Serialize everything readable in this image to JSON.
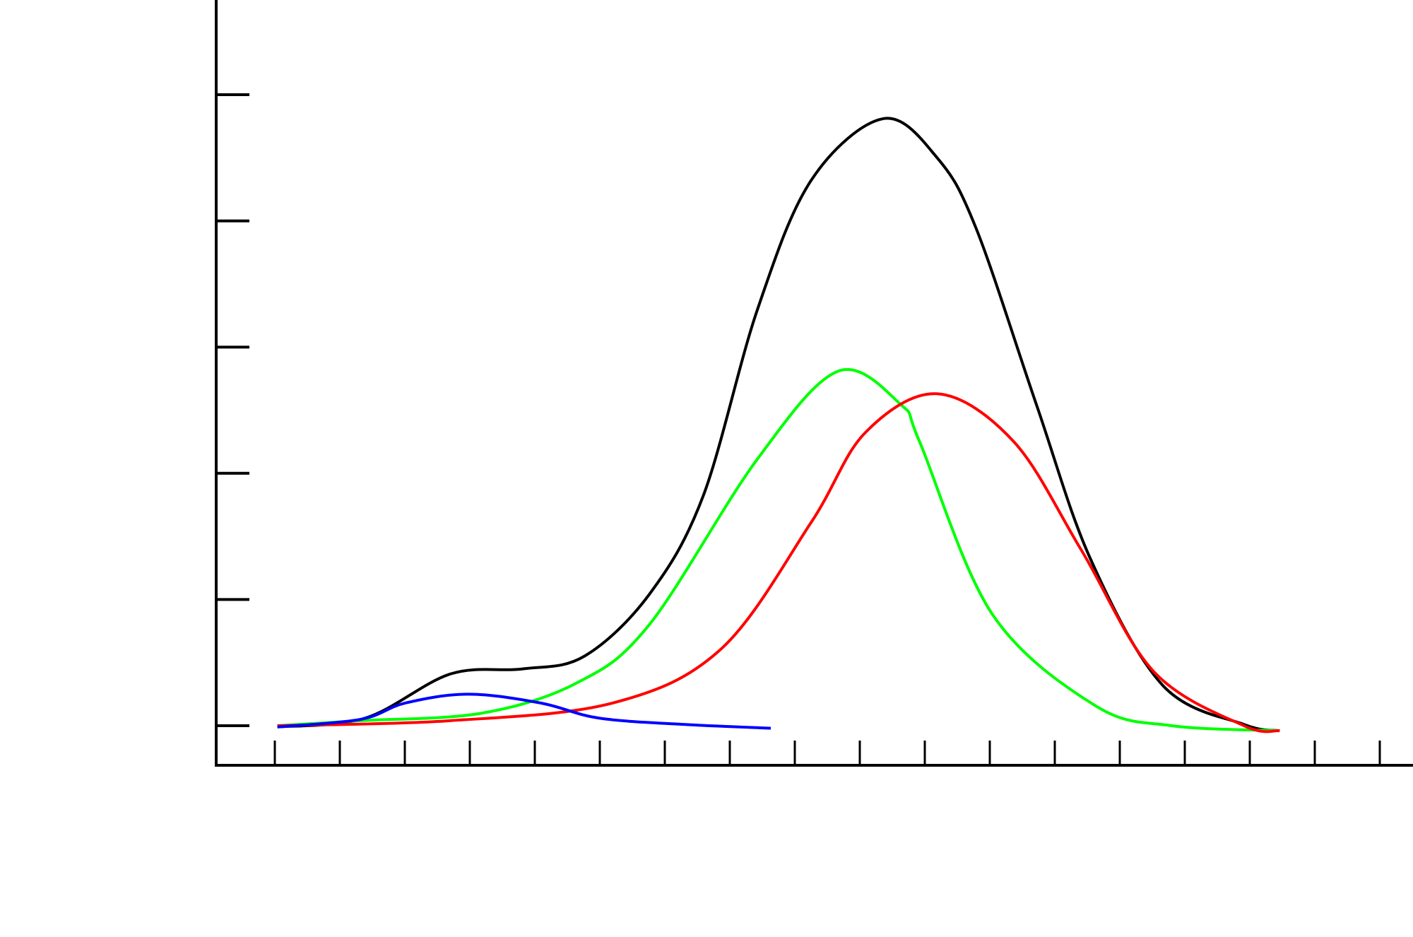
{
  "chart_data": {
    "type": "line",
    "title": "",
    "xlabel": "",
    "ylabel": "",
    "xlim": [
      -0.9,
      17.9
    ],
    "ylim": [
      -0.31,
      5.75
    ],
    "x_ticks": [
      0,
      1,
      2,
      3,
      4,
      5,
      6,
      7,
      8,
      9,
      10,
      11,
      12,
      13,
      14,
      15,
      16,
      17
    ],
    "y_ticks": [
      0,
      1,
      2,
      3,
      4,
      5
    ],
    "grid": false,
    "legend": "none",
    "series": [
      {
        "name": "black",
        "color": "#000000",
        "points": [
          [
            0.04,
            -0.01
          ],
          [
            1.39,
            0.06
          ],
          [
            2.7,
            0.41
          ],
          [
            3.81,
            0.45
          ],
          [
            4.76,
            0.55
          ],
          [
            5.76,
            1.04
          ],
          [
            6.59,
            1.82
          ],
          [
            7.42,
            3.29
          ],
          [
            8.25,
            4.32
          ],
          [
            9.36,
            4.81
          ],
          [
            10.19,
            4.5
          ],
          [
            10.79,
            3.94
          ],
          [
            11.72,
            2.54
          ],
          [
            12.55,
            1.32
          ],
          [
            13.66,
            0.32
          ],
          [
            14.91,
            0.01
          ],
          [
            15.46,
            -0.04
          ]
        ]
      },
      {
        "name": "green",
        "color": "#00ff00",
        "points": [
          [
            0.04,
            0
          ],
          [
            1.32,
            0.04
          ],
          [
            3.19,
            0.1
          ],
          [
            4.65,
            0.34
          ],
          [
            5.76,
            0.8
          ],
          [
            7.42,
            2.11
          ],
          [
            8.67,
            2.81
          ],
          [
            9.64,
            2.54
          ],
          [
            9.92,
            2.25
          ],
          [
            11.03,
            0.89
          ],
          [
            12.62,
            0.16
          ],
          [
            13.8,
            0
          ],
          [
            15.46,
            -0.04
          ]
        ]
      },
      {
        "name": "red",
        "color": "#ff0000",
        "points": [
          [
            0.04,
            0
          ],
          [
            2.7,
            0.04
          ],
          [
            5.2,
            0.18
          ],
          [
            6.87,
            0.61
          ],
          [
            8.25,
            1.61
          ],
          [
            9.08,
            2.32
          ],
          [
            10.19,
            2.63
          ],
          [
            11.37,
            2.25
          ],
          [
            12.41,
            1.39
          ],
          [
            13.52,
            0.43
          ],
          [
            14.91,
            0
          ],
          [
            15.46,
            -0.04
          ]
        ]
      },
      {
        "name": "blue",
        "color": "#0000ff",
        "points": [
          [
            0.04,
            -0.01
          ],
          [
            1.32,
            0.05
          ],
          [
            2.01,
            0.18
          ],
          [
            2.98,
            0.25
          ],
          [
            4.09,
            0.18
          ],
          [
            4.99,
            0.06
          ],
          [
            6.31,
            0.01
          ],
          [
            7.63,
            -0.02
          ]
        ]
      }
    ]
  }
}
